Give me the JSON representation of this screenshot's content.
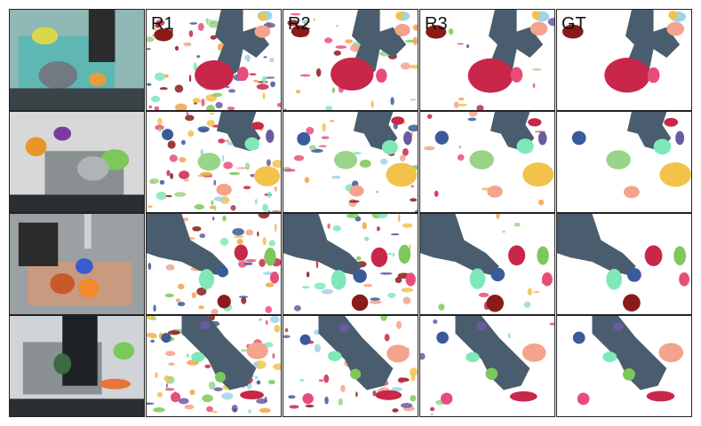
{
  "columns": [
    {
      "key": "input",
      "label": ""
    },
    {
      "key": "r1",
      "label": "R1"
    },
    {
      "key": "r2",
      "label": "R2"
    },
    {
      "key": "r3",
      "label": "R3"
    },
    {
      "key": "gt",
      "label": "GT"
    }
  ],
  "rows": 4,
  "colors": {
    "robot": "#4a5d6e",
    "crimson": "#c8274a",
    "dark_red": "#8b1a1a",
    "pink": "#e84d7a",
    "salmon": "#f4a38c",
    "mint": "#7fe8b8",
    "green": "#7cc85a",
    "yellow": "#f2c24a",
    "purple": "#6a5aa0",
    "blue": "#3b5a9a",
    "light_green": "#9ad48a",
    "sky": "#9fd4e6",
    "orange": "#f2a24a",
    "photo_bg": "#5a6a70"
  }
}
